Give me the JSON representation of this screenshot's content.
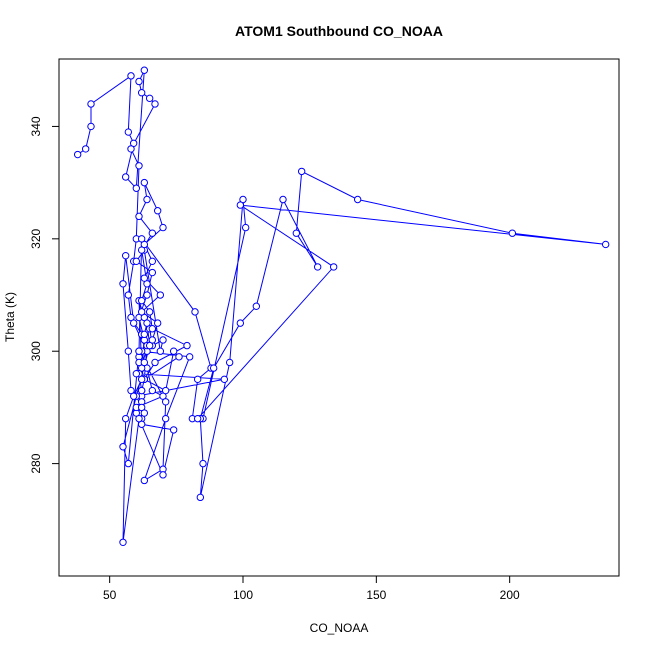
{
  "chart_data": {
    "type": "line",
    "title": "ATOM1 Southbound CO_NOAA",
    "xlabel": "CO_NOAA",
    "ylabel": "Theta (K)",
    "xlim": [
      31,
      241
    ],
    "ylim": [
      260,
      352
    ],
    "xticks": [
      50,
      100,
      150,
      200
    ],
    "yticks": [
      280,
      300,
      320,
      340
    ],
    "grid": false,
    "marker": "open-circle",
    "line_color": "#0000ff",
    "series": [
      {
        "x": [
          38,
          41,
          43,
          43,
          58,
          57,
          59,
          56,
          60,
          63,
          61,
          62,
          65,
          67,
          58,
          61,
          60,
          59,
          57,
          58,
          62,
          64,
          59,
          56,
          55,
          57,
          58,
          62,
          61,
          60,
          60,
          70,
          66,
          64,
          63,
          61,
          64,
          66,
          60,
          63,
          69,
          70,
          66,
          65,
          63,
          61,
          62,
          64,
          63,
          71,
          74,
          76,
          63,
          67,
          79,
          66,
          65,
          62,
          64,
          62,
          66,
          61,
          64,
          63,
          68,
          70,
          63,
          66,
          63,
          69,
          62,
          68,
          66,
          61,
          61,
          62,
          62,
          62,
          62,
          62,
          63,
          61,
          61,
          71,
          70,
          63,
          71,
          80,
          62,
          63,
          60,
          93,
          60,
          63,
          62,
          74,
          70,
          61,
          55,
          56,
          59,
          62,
          63,
          64,
          65,
          55,
          57,
          61,
          62,
          82,
          88,
          83,
          81,
          85,
          101,
          100,
          95,
          84,
          85,
          84,
          89,
          99,
          105,
          115,
          128,
          120,
          122,
          143,
          201,
          236,
          99,
          134,
          83
        ],
        "y": [
          335,
          336,
          340,
          344,
          349,
          339,
          337,
          331,
          329,
          350,
          348,
          346,
          345,
          344,
          336,
          333,
          320,
          316,
          310,
          306,
          303,
          300,
          305,
          317,
          312,
          300,
          293,
          292,
          290,
          289,
          290,
          292,
          293,
          297,
          302,
          306,
          310,
          314,
          316,
          318,
          300,
          302,
          301,
          304,
          306,
          309,
          297,
          301,
          295,
          293,
          300,
          299,
          295,
          298,
          301,
          304,
          307,
          309,
          312,
          318,
          321,
          324,
          327,
          330,
          325,
          322,
          319,
          316,
          313,
          310,
          307,
          305,
          302,
          299,
          296,
          293,
          291,
          288,
          290,
          293,
          295,
          298,
          300,
          291,
          279,
          277,
          288,
          299,
          300,
          298,
          296,
          295,
          292,
          289,
          287,
          286,
          278,
          288,
          266,
          288,
          292,
          295,
          303,
          305,
          301,
          283,
          280,
          300,
          320,
          307,
          297,
          295,
          288,
          288,
          322,
          327,
          298,
          274,
          280,
          288,
          297,
          305,
          308,
          327,
          315,
          321,
          332,
          327,
          321,
          319,
          326,
          315,
          288
        ]
      }
    ]
  }
}
